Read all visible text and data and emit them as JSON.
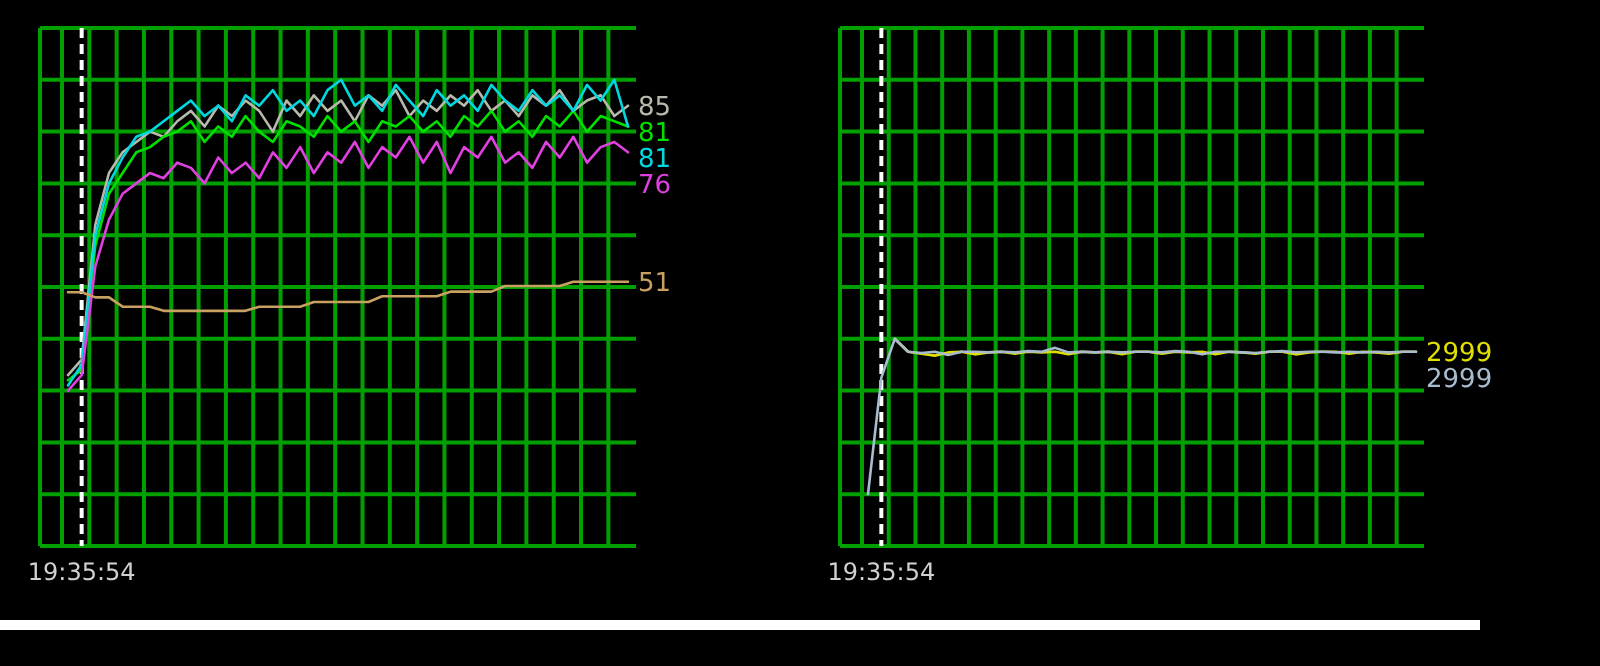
{
  "chart_data": [
    {
      "type": "line",
      "ylim": [
        0,
        100
      ],
      "grid": true,
      "annotations": [
        "19:35:54"
      ],
      "yticks": [
        {
          "value": 0,
          "label": null
        },
        {
          "value": 10,
          "label": null
        },
        {
          "value": 20,
          "label": null
        },
        {
          "value": 30,
          "label": null
        },
        {
          "value": 40,
          "label": null
        },
        {
          "value": 50,
          "label": null
        },
        {
          "value": 60,
          "label": null
        },
        {
          "value": 70,
          "label": null
        },
        {
          "value": 80,
          "label": null
        },
        {
          "value": 90,
          "label": null
        },
        {
          "value": 100,
          "label": null
        }
      ],
      "categories": [
        null,
        null,
        null,
        null,
        null,
        null,
        null,
        null,
        null,
        null,
        null,
        null,
        null,
        null,
        null,
        null,
        null,
        null,
        null,
        null,
        null,
        null,
        null,
        null,
        null,
        null,
        null,
        null,
        null,
        null,
        null,
        null,
        null,
        null,
        null,
        null,
        null,
        null,
        null,
        null,
        null,
        null
      ],
      "series": [
        {
          "color": "#b8b8ac",
          "values": [
            33,
            36,
            62,
            72,
            76,
            78,
            80,
            79,
            82,
            84,
            81,
            85,
            83,
            86,
            84,
            80,
            86,
            83,
            87,
            84,
            86,
            82,
            87,
            85,
            88,
            83,
            86,
            84,
            87,
            85,
            88,
            84,
            86,
            83,
            87,
            85,
            88,
            84,
            86,
            87,
            83,
            85
          ],
          "value_labels": [
            null,
            null,
            null,
            null,
            null,
            null,
            null,
            null,
            null,
            null,
            null,
            null,
            null,
            null,
            null,
            null,
            null,
            null,
            null,
            null,
            null,
            null,
            null,
            null,
            null,
            null,
            null,
            null,
            null,
            null,
            null,
            null,
            null,
            null,
            null,
            null,
            null,
            null,
            null,
            null,
            null,
            "85"
          ]
        },
        {
          "color": "#00e000",
          "values": [
            32,
            34,
            58,
            68,
            72,
            76,
            77,
            79,
            80,
            82,
            78,
            81,
            79,
            83,
            80,
            78,
            82,
            81,
            79,
            83,
            80,
            82,
            78,
            82,
            81,
            83,
            80,
            82,
            79,
            83,
            81,
            84,
            80,
            82,
            79,
            83,
            81,
            84,
            80,
            83,
            82,
            81
          ],
          "value_labels": [
            null,
            null,
            null,
            null,
            null,
            null,
            null,
            null,
            null,
            null,
            null,
            null,
            null,
            null,
            null,
            null,
            null,
            null,
            null,
            null,
            null,
            null,
            null,
            null,
            null,
            null,
            null,
            null,
            null,
            null,
            null,
            null,
            null,
            null,
            null,
            null,
            null,
            null,
            null,
            null,
            null,
            "81"
          ]
        },
        {
          "color": "#00d8e0",
          "values": [
            31,
            35,
            60,
            70,
            75,
            79,
            80,
            82,
            84,
            86,
            83,
            85,
            82,
            87,
            85,
            88,
            84,
            86,
            83,
            88,
            90,
            85,
            87,
            84,
            89,
            86,
            83,
            88,
            85,
            87,
            84,
            89,
            86,
            84,
            88,
            85,
            87,
            84,
            89,
            86,
            90,
            81
          ],
          "value_labels": [
            null,
            null,
            null,
            null,
            null,
            null,
            null,
            null,
            null,
            null,
            null,
            null,
            null,
            null,
            null,
            null,
            null,
            null,
            null,
            null,
            null,
            null,
            null,
            null,
            null,
            null,
            null,
            null,
            null,
            null,
            null,
            null,
            null,
            null,
            null,
            null,
            null,
            null,
            null,
            null,
            null,
            "81"
          ]
        },
        {
          "color": "#e040e0",
          "values": [
            30,
            33,
            54,
            63,
            68,
            70,
            72,
            71,
            74,
            73,
            70,
            75,
            72,
            74,
            71,
            76,
            73,
            77,
            72,
            76,
            74,
            78,
            73,
            77,
            75,
            79,
            74,
            78,
            72,
            77,
            75,
            79,
            74,
            76,
            73,
            78,
            75,
            79,
            74,
            77,
            78,
            76
          ],
          "value_labels": [
            null,
            null,
            null,
            null,
            null,
            null,
            null,
            null,
            null,
            null,
            null,
            null,
            null,
            null,
            null,
            null,
            null,
            null,
            null,
            null,
            null,
            null,
            null,
            null,
            null,
            null,
            null,
            null,
            null,
            null,
            null,
            null,
            null,
            null,
            null,
            null,
            null,
            null,
            null,
            null,
            null,
            "76"
          ]
        },
        {
          "color": "#c8a060",
          "values": [
            49,
            49,
            48,
            48,
            46.2,
            46.2,
            46.2,
            45.4,
            45.4,
            45.4,
            45.4,
            45.4,
            45.4,
            45.4,
            46.2,
            46.2,
            46.2,
            46.2,
            47.1,
            47.1,
            47.1,
            47.1,
            47.1,
            48.2,
            48.2,
            48.2,
            48.2,
            48.2,
            49.1,
            49.1,
            49.1,
            49.1,
            50.2,
            50.2,
            50.2,
            50.2,
            50.2,
            51,
            51,
            51,
            51,
            51
          ],
          "value_labels": [
            null,
            null,
            null,
            null,
            null,
            null,
            null,
            null,
            null,
            null,
            null,
            null,
            null,
            null,
            null,
            null,
            null,
            null,
            null,
            null,
            null,
            null,
            null,
            null,
            null,
            null,
            null,
            null,
            null,
            null,
            null,
            null,
            null,
            null,
            null,
            null,
            null,
            null,
            null,
            null,
            null,
            "51"
          ]
        }
      ]
    },
    {
      "type": "line",
      "ylim": [
        0,
        8000
      ],
      "grid": true,
      "annotations": [
        "19:35:54"
      ],
      "yticks": [
        {
          "value": 0,
          "label": null
        },
        {
          "value": 800,
          "label": null
        },
        {
          "value": 1600,
          "label": null
        },
        {
          "value": 2400,
          "label": null
        },
        {
          "value": 3200,
          "label": null
        },
        {
          "value": 4000,
          "label": null
        },
        {
          "value": 4800,
          "label": null
        },
        {
          "value": 5600,
          "label": null
        },
        {
          "value": 6400,
          "label": null
        },
        {
          "value": 7200,
          "label": null
        },
        {
          "value": 8000,
          "label": null
        }
      ],
      "categories": [
        null,
        null,
        null,
        null,
        null,
        null,
        null,
        null,
        null,
        null,
        null,
        null,
        null,
        null,
        null,
        null,
        null,
        null,
        null,
        null,
        null,
        null,
        null,
        null,
        null,
        null,
        null,
        null,
        null,
        null,
        null,
        null,
        null,
        null,
        null,
        null,
        null,
        null,
        null,
        null,
        null,
        null
      ],
      "series": [
        {
          "color": "#e0e000",
          "values": [
            null,
            null,
            3200,
            3000,
            2970,
            2940,
            2990,
            3000,
            2960,
            2990,
            3000,
            2970,
            3000,
            2990,
            3000,
            2960,
            3000,
            2990,
            3000,
            2960,
            3000,
            3000,
            2970,
            3000,
            2990,
            3000,
            2960,
            3000,
            2990,
            2970,
            3000,
            3000,
            2960,
            2990,
            3000,
            3000,
            2970,
            3000,
            2990,
            2970,
            3000,
            2999
          ],
          "value_labels": [
            null,
            null,
            null,
            null,
            null,
            null,
            null,
            null,
            null,
            null,
            null,
            null,
            null,
            null,
            null,
            null,
            null,
            null,
            null,
            null,
            null,
            null,
            null,
            null,
            null,
            null,
            null,
            null,
            null,
            null,
            null,
            null,
            null,
            null,
            null,
            null,
            null,
            null,
            null,
            null,
            null,
            "2999"
          ]
        },
        {
          "color": "#a8bcd0",
          "values": [
            800,
            2600,
            3200,
            3000,
            2980,
            3000,
            2950,
            3000,
            3000,
            2990,
            3000,
            2990,
            3010,
            3000,
            3060,
            2990,
            3000,
            2990,
            3000,
            2990,
            3000,
            3000,
            2990,
            3010,
            3000,
            2960,
            3000,
            3000,
            2990,
            2980,
            3000,
            3010,
            2990,
            3000,
            3000,
            2990,
            3000,
            2990,
            3000,
            2990,
            3000,
            2999
          ],
          "value_labels": [
            null,
            null,
            null,
            null,
            null,
            null,
            null,
            null,
            null,
            null,
            null,
            null,
            null,
            null,
            null,
            null,
            null,
            null,
            null,
            null,
            null,
            null,
            null,
            null,
            null,
            null,
            null,
            null,
            null,
            null,
            null,
            null,
            null,
            null,
            null,
            null,
            null,
            null,
            null,
            null,
            null,
            "2999"
          ]
        }
      ]
    }
  ]
}
